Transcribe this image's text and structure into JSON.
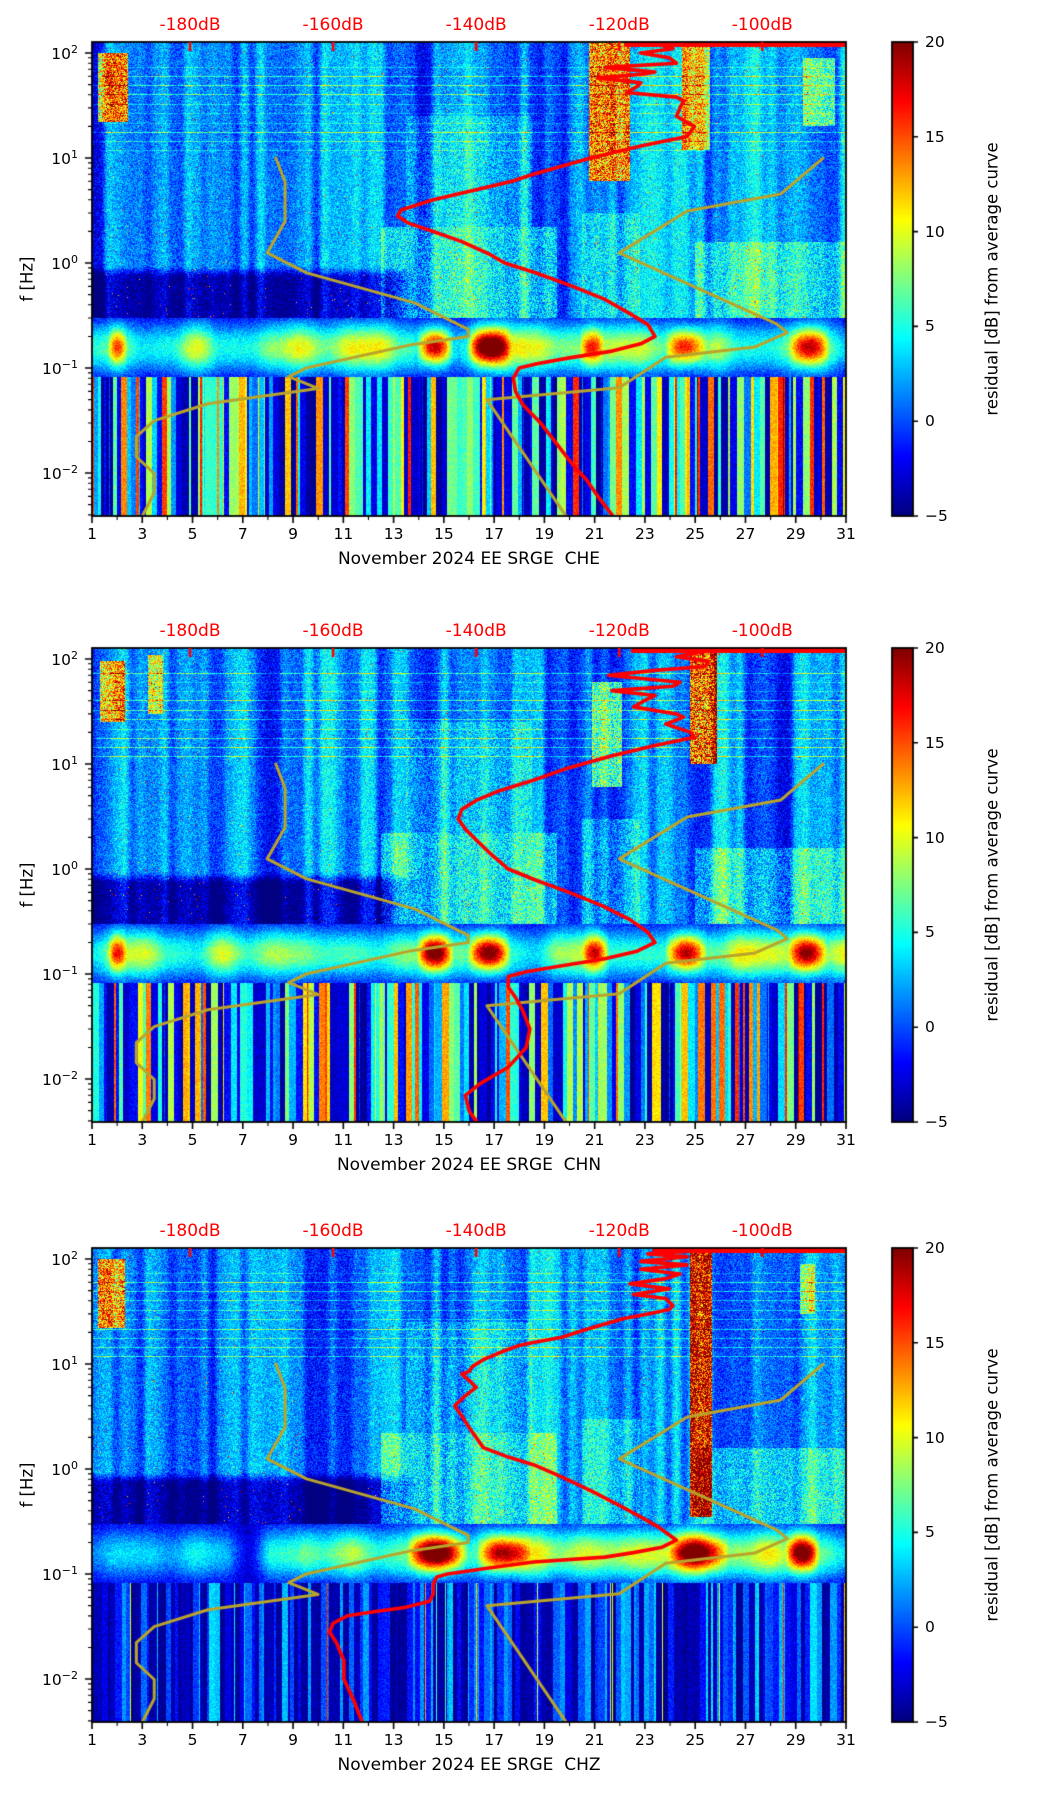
{
  "figure": {
    "background": "#ffffff",
    "text_color": "#000000",
    "top_axis_color": "#ff0000",
    "red_curve_color": "#ff0000",
    "olive_curve_color": "#b9a42c"
  },
  "chart_data": {
    "type": "heatmap",
    "title": "",
    "ylabel": "f [Hz]",
    "y_ticks": [
      {
        "base": "10",
        "exp": "2",
        "value": 100
      },
      {
        "base": "10",
        "exp": "1",
        "value": 10
      },
      {
        "base": "10",
        "exp": "0",
        "value": 1
      },
      {
        "base": "10",
        "exp": "−1",
        "value": 0.1
      },
      {
        "base": "10",
        "exp": "−2",
        "value": 0.01
      }
    ],
    "freq_range_hz": [
      0.0039,
      127.3
    ],
    "x_range_days": [
      1,
      31
    ],
    "x_major_ticks_days": [
      1,
      3,
      5,
      7,
      9,
      11,
      13,
      15,
      17,
      19,
      21,
      23,
      25,
      27,
      29,
      31
    ],
    "top_axis": {
      "tick_labels": [
        "-180dB",
        "-160dB",
        "-140dB",
        "-120dB",
        "-100dB"
      ],
      "tick_values_db": [
        -180,
        -160,
        -140,
        -120,
        -100
      ],
      "db_range": [
        -193.7,
        -88.3
      ],
      "color": "#ff0000"
    },
    "colorbar": {
      "label": "residual [dB] from average curve",
      "ticks": [
        20,
        15,
        10,
        5,
        0,
        -5
      ],
      "range": [
        -5,
        20
      ],
      "colormap": "jet"
    },
    "noise_model_curves_olive": {
      "NLNM_hz_db": [
        [
          10,
          -168
        ],
        [
          5.88,
          -166.7
        ],
        [
          2.5,
          -166.7
        ],
        [
          1.25,
          -169.2
        ],
        [
          0.806,
          -163.7
        ],
        [
          0.417,
          -148.6
        ],
        [
          0.233,
          -141.1
        ],
        [
          0.2,
          -141.1
        ],
        [
          0.167,
          -149
        ],
        [
          0.1,
          -163.8
        ],
        [
          0.083,
          -166.2
        ],
        [
          0.064,
          -162.1
        ],
        [
          0.0457,
          -177.5
        ],
        [
          0.0316,
          -185
        ],
        [
          0.0222,
          -187.5
        ],
        [
          0.0143,
          -187.5
        ],
        [
          0.0099,
          -185
        ],
        [
          0.0065,
          -185
        ],
        [
          0.003,
          -187.5
        ]
      ],
      "NHNM_hz_db": [
        [
          10,
          -91.5
        ],
        [
          4.55,
          -97.4
        ],
        [
          3.13,
          -110.5
        ],
        [
          1.25,
          -120
        ],
        [
          0.263,
          -98
        ],
        [
          0.217,
          -96.5
        ],
        [
          0.159,
          -101
        ],
        [
          0.127,
          -113.5
        ],
        [
          0.065,
          -120
        ],
        [
          0.05,
          -138.5
        ],
        [
          0.0028,
          -126
        ]
      ]
    },
    "texture": {
      "h_line_freqs_hz": [
        74,
        60,
        50,
        41,
        33,
        27,
        21.5,
        17.5,
        14.5,
        11.8
      ],
      "quiet_band": {
        "f_lo": 0.2,
        "f_hi": 0.85,
        "until_day": 13.5,
        "db": -5.5
      },
      "microseism": {
        "f_center_hz": 0.155,
        "sigma_decades": 0.18,
        "base_db": 7.2,
        "var_db": 8
      },
      "wisps": [
        {
          "d0": 12.5,
          "d1": 19.5,
          "f0": 0.24,
          "f1": 2.2,
          "db": 4.5
        },
        {
          "d0": 25.0,
          "d1": 31.2,
          "f0": 0.24,
          "f1": 1.6,
          "db": 4
        },
        {
          "d0": 13.5,
          "d1": 18.5,
          "f0": 2.2,
          "f1": 25,
          "db": 2.5
        },
        {
          "d0": 20.5,
          "d1": 22.8,
          "f0": 0.3,
          "f1": 3,
          "db": 3
        }
      ]
    },
    "panels": [
      {
        "id": "CHE",
        "xlabel": "November 2024 EE SRGE  CHE",
        "seed": 7,
        "low_stripe_amp": 21,
        "low_spike_db": 5,
        "band_early_damp": null,
        "hot_columns": [
          {
            "d0": 20.8,
            "d1": 22.4,
            "f0": 6,
            "f1": 126,
            "db": 12
          },
          {
            "d0": 24.5,
            "d1": 25.6,
            "f0": 12,
            "f1": 115,
            "db": 9
          },
          {
            "d0": 1.2,
            "d1": 2.4,
            "f0": 22,
            "f1": 100,
            "db": 12
          },
          {
            "d0": 29.3,
            "d1": 30.6,
            "f0": 20,
            "f1": 90,
            "db": 6
          }
        ],
        "microseism_blobs_days": [
          {
            "d0": 13.9,
            "d1": 15.4,
            "db": 15
          },
          {
            "d0": 15.9,
            "d1": 17.7,
            "db": 17
          },
          {
            "d0": 20.4,
            "d1": 21.4,
            "db": 9
          },
          {
            "d0": 23.8,
            "d1": 25.5,
            "db": 12
          },
          {
            "d0": 28.7,
            "d1": 30.4,
            "db": 11
          },
          {
            "d0": 1.6,
            "d1": 2.4,
            "db": 8
          }
        ],
        "red_top_clip_db": -119,
        "red_curve_hz_db": [
          [
            128,
            -119
          ],
          [
            127,
            -112.5
          ],
          [
            126,
            -118
          ],
          [
            125,
            -113
          ],
          [
            118,
            -114
          ],
          [
            110,
            -112.5
          ],
          [
            100,
            -117
          ],
          [
            90,
            -113
          ],
          [
            80,
            -112
          ],
          [
            73,
            -122
          ],
          [
            66,
            -115
          ],
          [
            63,
            -116.5
          ],
          [
            58,
            -123
          ],
          [
            52,
            -117
          ],
          [
            48,
            -117.5
          ],
          [
            42,
            -119
          ],
          [
            38,
            -112
          ],
          [
            35,
            -111
          ],
          [
            30,
            -111.5
          ],
          [
            25,
            -112
          ],
          [
            20,
            -109.5
          ],
          [
            16,
            -110.5
          ],
          [
            13,
            -117
          ],
          [
            10,
            -124
          ],
          [
            7,
            -132
          ],
          [
            6,
            -135
          ],
          [
            5,
            -140
          ],
          [
            4,
            -146
          ],
          [
            3.2,
            -150.5
          ],
          [
            2.8,
            -151
          ],
          [
            2.4,
            -149.5
          ],
          [
            2,
            -146
          ],
          [
            1.6,
            -142
          ],
          [
            1.2,
            -138
          ],
          [
            1,
            -136
          ],
          [
            0.8,
            -131.5
          ],
          [
            0.6,
            -126.5
          ],
          [
            0.45,
            -122
          ],
          [
            0.33,
            -118.5
          ],
          [
            0.26,
            -116
          ],
          [
            0.2,
            -115
          ],
          [
            0.17,
            -117
          ],
          [
            0.145,
            -121
          ],
          [
            0.125,
            -127
          ],
          [
            0.11,
            -131.5
          ],
          [
            0.1,
            -134
          ],
          [
            0.08,
            -134.8
          ],
          [
            0.06,
            -134.5
          ],
          [
            0.045,
            -133.5
          ],
          [
            0.03,
            -131
          ],
          [
            0.02,
            -129
          ],
          [
            0.012,
            -126.5
          ],
          [
            0.0085,
            -124.5
          ],
          [
            0.006,
            -123
          ],
          [
            0.004,
            -121
          ]
        ]
      },
      {
        "id": "CHN",
        "xlabel": "November 2024 EE SRGE  CHN",
        "seed": 19,
        "low_stripe_amp": 21,
        "low_spike_db": 5,
        "band_early_damp": null,
        "hot_columns": [
          {
            "d0": 24.8,
            "d1": 25.9,
            "f0": 10,
            "f1": 126,
            "db": 15
          },
          {
            "d0": 1.3,
            "d1": 2.3,
            "f0": 25,
            "f1": 95,
            "db": 10
          },
          {
            "d0": 20.9,
            "d1": 22.1,
            "f0": 6,
            "f1": 60,
            "db": 7
          },
          {
            "d0": 3.2,
            "d1": 3.8,
            "f0": 30,
            "f1": 110,
            "db": 8
          }
        ],
        "microseism_blobs_days": [
          {
            "d0": 13.9,
            "d1": 15.4,
            "db": 15
          },
          {
            "d0": 15.9,
            "d1": 17.7,
            "db": 16
          },
          {
            "d0": 20.5,
            "d1": 21.6,
            "db": 10
          },
          {
            "d0": 23.8,
            "d1": 25.5,
            "db": 13
          },
          {
            "d0": 28.7,
            "d1": 30.3,
            "db": 12
          },
          {
            "d0": 1.6,
            "d1": 2.4,
            "db": 8
          }
        ],
        "red_top_clip_db": -118,
        "red_curve_hz_db": [
          [
            128,
            -116
          ],
          [
            127,
            -107
          ],
          [
            125,
            -114
          ],
          [
            122,
            -106.5
          ],
          [
            115,
            -109
          ],
          [
            105,
            -112
          ],
          [
            95,
            -107.5
          ],
          [
            85,
            -108
          ],
          [
            78,
            -115
          ],
          [
            70,
            -121.5
          ],
          [
            60,
            -111.5
          ],
          [
            55,
            -112.5
          ],
          [
            50,
            -121
          ],
          [
            45,
            -115
          ],
          [
            40,
            -116.5
          ],
          [
            35,
            -118
          ],
          [
            30,
            -112
          ],
          [
            28,
            -111
          ],
          [
            24,
            -113.5
          ],
          [
            20,
            -110
          ],
          [
            18,
            -109.5
          ],
          [
            15,
            -115
          ],
          [
            12,
            -121
          ],
          [
            9,
            -127.5
          ],
          [
            7,
            -132
          ],
          [
            5.5,
            -137
          ],
          [
            4.5,
            -140
          ],
          [
            3.7,
            -142
          ],
          [
            3,
            -142.5
          ],
          [
            2.4,
            -141.5
          ],
          [
            1.9,
            -140
          ],
          [
            1.4,
            -138
          ],
          [
            1,
            -135.5
          ],
          [
            0.8,
            -132
          ],
          [
            0.6,
            -127
          ],
          [
            0.45,
            -122.5
          ],
          [
            0.33,
            -118.5
          ],
          [
            0.25,
            -116
          ],
          [
            0.2,
            -115
          ],
          [
            0.165,
            -117.5
          ],
          [
            0.14,
            -122
          ],
          [
            0.12,
            -128
          ],
          [
            0.105,
            -133
          ],
          [
            0.095,
            -135.5
          ],
          [
            0.075,
            -135.5
          ],
          [
            0.06,
            -134.5
          ],
          [
            0.045,
            -133.5
          ],
          [
            0.03,
            -132.5
          ],
          [
            0.02,
            -133
          ],
          [
            0.013,
            -135.5
          ],
          [
            0.009,
            -139.5
          ],
          [
            0.007,
            -141.5
          ],
          [
            0.005,
            -141
          ],
          [
            0.004,
            -140
          ]
        ]
      },
      {
        "id": "CHZ",
        "xlabel": "November 2024 EE SRGE  CHZ",
        "seed": 31,
        "low_stripe_amp": 8.5,
        "low_spike_db": 16,
        "band_early_damp": {
          "until_day": 9.5,
          "db": -6
        },
        "hot_columns": [
          {
            "d0": 24.8,
            "d1": 25.7,
            "f0": 0.35,
            "f1": 126,
            "db": 15
          },
          {
            "d0": 1.2,
            "d1": 2.3,
            "f0": 22,
            "f1": 100,
            "db": 11
          },
          {
            "d0": 29.2,
            "d1": 29.8,
            "f0": 30,
            "f1": 90,
            "db": 6
          }
        ],
        "microseism_blobs_days": [
          {
            "d0": 13.5,
            "d1": 16.0,
            "db": 18
          },
          {
            "d0": 16.3,
            "d1": 18.5,
            "db": 14
          },
          {
            "d0": 23.9,
            "d1": 26.4,
            "db": 13
          },
          {
            "d0": 28.6,
            "d1": 30.0,
            "db": 15
          }
        ],
        "red_top_clip_db": -115,
        "red_curve_hz_db": [
          [
            128,
            -112
          ],
          [
            127,
            -108.5
          ],
          [
            125,
            -114
          ],
          [
            120,
            -109
          ],
          [
            112,
            -116
          ],
          [
            105,
            -110.5
          ],
          [
            95,
            -117
          ],
          [
            88,
            -110.5
          ],
          [
            80,
            -117
          ],
          [
            72,
            -111.5
          ],
          [
            65,
            -113.5
          ],
          [
            58,
            -118.5
          ],
          [
            52,
            -113
          ],
          [
            46,
            -118
          ],
          [
            42,
            -113.5
          ],
          [
            36,
            -112.5
          ],
          [
            33,
            -113
          ],
          [
            30,
            -116
          ],
          [
            27,
            -119.5
          ],
          [
            24,
            -122
          ],
          [
            21,
            -125
          ],
          [
            18,
            -128
          ],
          [
            16,
            -132
          ],
          [
            15,
            -134
          ],
          [
            13,
            -136.5
          ],
          [
            11,
            -139
          ],
          [
            9.5,
            -140.5
          ],
          [
            8.5,
            -141
          ],
          [
            8,
            -142
          ],
          [
            7,
            -141
          ],
          [
            6,
            -140
          ],
          [
            5,
            -141.5
          ],
          [
            4,
            -143
          ],
          [
            3.2,
            -142
          ],
          [
            2.5,
            -141
          ],
          [
            2,
            -140
          ],
          [
            1.6,
            -139
          ],
          [
            1.3,
            -135.5
          ],
          [
            1.1,
            -132
          ],
          [
            0.9,
            -129
          ],
          [
            0.78,
            -127
          ],
          [
            0.6,
            -123.5
          ],
          [
            0.45,
            -120
          ],
          [
            0.35,
            -117
          ],
          [
            0.28,
            -114.5
          ],
          [
            0.23,
            -112.8
          ],
          [
            0.21,
            -112
          ],
          [
            0.18,
            -114
          ],
          [
            0.16,
            -118
          ],
          [
            0.145,
            -122
          ],
          [
            0.13,
            -132
          ],
          [
            0.115,
            -138
          ],
          [
            0.1,
            -144
          ],
          [
            0.094,
            -145.5
          ],
          [
            0.08,
            -146
          ],
          [
            0.065,
            -146
          ],
          [
            0.055,
            -146.5
          ],
          [
            0.048,
            -150
          ],
          [
            0.043,
            -155
          ],
          [
            0.04,
            -158
          ],
          [
            0.034,
            -160
          ],
          [
            0.028,
            -160.5
          ],
          [
            0.022,
            -159.5
          ],
          [
            0.015,
            -158.5
          ],
          [
            0.01,
            -158.5
          ],
          [
            0.006,
            -157
          ],
          [
            0.004,
            -156
          ]
        ]
      }
    ]
  }
}
